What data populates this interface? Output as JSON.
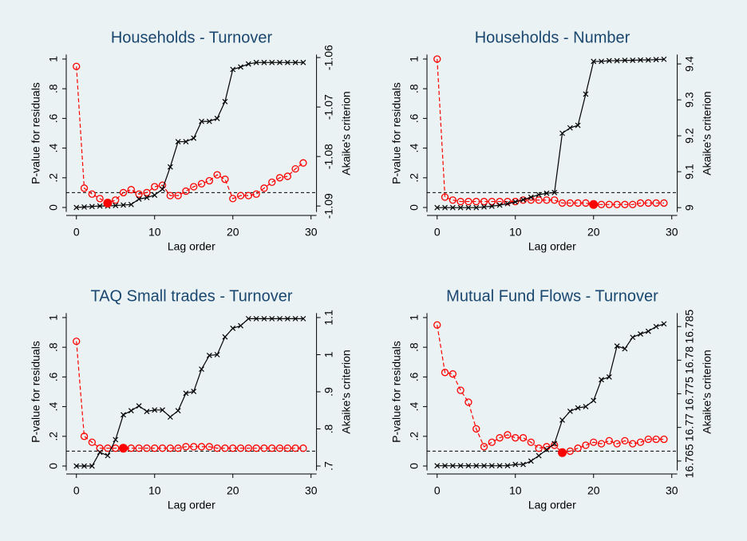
{
  "chart_data": [
    {
      "type": "line",
      "title": "Households - Turnover",
      "xlabel": "Lag order",
      "ylabel": "P-value for residuals",
      "y2label": "Akaike's criterion",
      "x": [
        0,
        1,
        2,
        3,
        4,
        5,
        6,
        7,
        8,
        9,
        10,
        11,
        12,
        13,
        14,
        15,
        16,
        17,
        18,
        19,
        20,
        21,
        22,
        23,
        24,
        25,
        26,
        27,
        28,
        29
      ],
      "xlim": [
        -1.3,
        30.7
      ],
      "xticks": [
        0,
        10,
        20,
        30
      ],
      "ylim": [
        -0.03,
        1.03
      ],
      "yticks": [
        0,
        {
          "value": 0.2,
          "label": ".2"
        },
        {
          "value": 0.4,
          "label": ".4"
        },
        {
          "value": 0.6,
          "label": ".6"
        },
        {
          "value": 0.8,
          "label": ".8"
        },
        1
      ],
      "y2lim": [
        -1.0912,
        -1.0594
      ],
      "y2ticks": [
        -1.09,
        -1.08,
        -1.07,
        -1.06
      ],
      "hline": 0.1,
      "highlight_x": 4,
      "series": [
        {
          "color": "#ff0000",
          "dashed": true,
          "marker": "circle",
          "values": [
            0.95,
            0.13,
            0.09,
            0.06,
            0.03,
            0.05,
            0.1,
            0.12,
            0.09,
            0.1,
            0.14,
            0.15,
            0.08,
            0.08,
            0.11,
            0.14,
            0.16,
            0.18,
            0.22,
            0.19,
            0.06,
            0.08,
            0.08,
            0.09,
            0.13,
            0.17,
            0.2,
            0.21,
            0.26,
            0.3
          ]
        },
        {
          "color": "#000000",
          "dashed": false,
          "marker": "x",
          "axis": "y2",
          "values": [
            -1.0903,
            -1.0902,
            -1.0901,
            -1.09,
            -1.09,
            -1.0899,
            -1.0898,
            -1.0897,
            -1.0886,
            -1.0883,
            -1.0878,
            -1.0866,
            -1.0821,
            -1.077,
            -1.077,
            -1.0763,
            -1.0729,
            -1.0729,
            -1.0723,
            -1.0689,
            -1.0624,
            -1.0619,
            -1.0613,
            -1.061,
            -1.061,
            -1.061,
            -1.061,
            -1.061,
            -1.061,
            -1.061
          ]
        }
      ]
    },
    {
      "type": "line",
      "title": "Households - Number",
      "xlabel": "Lag order",
      "ylabel": "P-value for residuals",
      "y2label": "Akaike's criterion",
      "x": [
        0,
        1,
        2,
        3,
        4,
        5,
        6,
        7,
        8,
        9,
        10,
        11,
        12,
        13,
        14,
        15,
        16,
        17,
        18,
        19,
        20,
        21,
        22,
        23,
        24,
        25,
        26,
        27,
        28,
        29
      ],
      "xlim": [
        -1.3,
        30.7
      ],
      "xticks": [
        0,
        10,
        20,
        30
      ],
      "ylim": [
        -0.03,
        1.03
      ],
      "yticks": [
        0,
        {
          "value": 0.2,
          "label": ".2"
        },
        {
          "value": 0.4,
          "label": ".4"
        },
        {
          "value": 0.6,
          "label": ".6"
        },
        {
          "value": 0.8,
          "label": ".8"
        },
        1
      ],
      "y2lim": [
        8.988,
        9.426
      ],
      "y2ticks": [
        9,
        9.1,
        9.2,
        9.3,
        9.4
      ],
      "hline": 0.1,
      "highlight_x": 20,
      "series": [
        {
          "color": "#ff0000",
          "dashed": true,
          "marker": "circle",
          "values": [
            1.0,
            0.07,
            0.05,
            0.04,
            0.04,
            0.04,
            0.04,
            0.04,
            0.04,
            0.04,
            0.04,
            0.05,
            0.05,
            0.05,
            0.05,
            0.05,
            0.03,
            0.03,
            0.03,
            0.03,
            0.02,
            0.02,
            0.02,
            0.02,
            0.02,
            0.02,
            0.03,
            0.03,
            0.03,
            0.03
          ]
        },
        {
          "color": "#000000",
          "dashed": false,
          "marker": "x",
          "axis": "y2",
          "values": [
            9.0,
            9.0,
            9.0,
            9.0,
            9.0,
            9.0,
            9.002,
            9.004,
            9.007,
            9.011,
            9.016,
            9.022,
            9.029,
            9.036,
            9.04,
            9.042,
            9.207,
            9.222,
            9.229,
            9.316,
            9.407,
            9.407,
            9.409,
            9.409,
            9.41,
            9.41,
            9.411,
            9.411,
            9.412,
            9.413
          ]
        }
      ]
    },
    {
      "type": "line",
      "title": "TAQ Small trades - Turnover",
      "xlabel": "Lag order",
      "ylabel": "P-value for residuals",
      "y2label": "Akaike's criterion",
      "x": [
        0,
        1,
        2,
        3,
        4,
        5,
        6,
        7,
        8,
        9,
        10,
        11,
        12,
        13,
        14,
        15,
        16,
        17,
        18,
        19,
        20,
        21,
        22,
        23,
        24,
        25,
        26,
        27,
        28,
        29
      ],
      "xlim": [
        -1.3,
        30.7
      ],
      "xticks": [
        0,
        10,
        20,
        30
      ],
      "ylim": [
        -0.03,
        1.03
      ],
      "yticks": [
        0,
        {
          "value": 0.2,
          "label": ".2"
        },
        {
          "value": 0.4,
          "label": ".4"
        },
        {
          "value": 0.6,
          "label": ".6"
        },
        {
          "value": 0.8,
          "label": ".8"
        },
        1
      ],
      "y2lim": [
        0.688,
        1.112
      ],
      "y2ticks": [
        {
          "value": 0.7,
          "label": ".7"
        },
        {
          "value": 0.8,
          "label": ".8"
        },
        {
          "value": 0.9,
          "label": ".9"
        },
        1,
        1.1
      ],
      "hline": 0.1,
      "highlight_x": 6,
      "series": [
        {
          "color": "#ff0000",
          "dashed": true,
          "marker": "circle",
          "values": [
            0.84,
            0.2,
            0.16,
            0.12,
            0.12,
            0.12,
            0.12,
            0.12,
            0.12,
            0.12,
            0.12,
            0.12,
            0.12,
            0.12,
            0.13,
            0.13,
            0.13,
            0.13,
            0.12,
            0.12,
            0.12,
            0.12,
            0.12,
            0.12,
            0.12,
            0.12,
            0.12,
            0.12,
            0.12,
            0.12
          ]
        },
        {
          "color": "#000000",
          "dashed": false,
          "marker": "x",
          "axis": "y2",
          "values": [
            0.7,
            0.7,
            0.7,
            0.737,
            0.728,
            0.771,
            0.838,
            0.849,
            0.862,
            0.847,
            0.851,
            0.851,
            0.832,
            0.849,
            0.896,
            0.901,
            0.961,
            0.998,
            1.0,
            1.048,
            1.071,
            1.078,
            1.097,
            1.097,
            1.097,
            1.097,
            1.097,
            1.097,
            1.097,
            1.097
          ]
        }
      ]
    },
    {
      "type": "line",
      "title": "Mutual Fund Flows - Turnover",
      "xlabel": "Lag order",
      "ylabel": "P-value for residuals",
      "y2label": "Akaike's criterion",
      "x": [
        0,
        1,
        2,
        3,
        4,
        5,
        6,
        7,
        8,
        9,
        10,
        11,
        12,
        13,
        14,
        15,
        16,
        17,
        18,
        19,
        20,
        21,
        22,
        23,
        24,
        25,
        26,
        27,
        28,
        29
      ],
      "xlim": [
        -1.3,
        30.7
      ],
      "xticks": [
        0,
        10,
        20,
        30
      ],
      "ylim": [
        -0.03,
        1.03
      ],
      "yticks": [
        0,
        {
          "value": 0.2,
          "label": ".2"
        },
        {
          "value": 0.4,
          "label": ".4"
        },
        {
          "value": 0.6,
          "label": ".6"
        },
        {
          "value": 0.8,
          "label": ".8"
        },
        1
      ],
      "y2lim": [
        16.7636,
        16.787
      ],
      "y2ticks": [
        16.765,
        16.77,
        16.775,
        16.78,
        16.785
      ],
      "hline": 0.1,
      "highlight_x": 16,
      "series": [
        {
          "color": "#ff0000",
          "dashed": true,
          "marker": "circle",
          "values": [
            0.95,
            0.63,
            0.62,
            0.51,
            0.43,
            0.25,
            0.13,
            0.16,
            0.19,
            0.21,
            0.19,
            0.19,
            0.16,
            0.12,
            0.13,
            0.14,
            0.09,
            0.1,
            0.12,
            0.14,
            0.16,
            0.15,
            0.17,
            0.15,
            0.17,
            0.15,
            0.16,
            0.18,
            0.18,
            0.18
          ]
        },
        {
          "color": "#000000",
          "dashed": false,
          "marker": "x",
          "axis": "y2",
          "values": [
            16.7643,
            16.7643,
            16.7643,
            16.7643,
            16.7643,
            16.7643,
            16.7643,
            16.7643,
            16.7643,
            16.7643,
            16.7645,
            16.7645,
            16.765,
            16.7658,
            16.7667,
            16.7676,
            16.7711,
            16.7724,
            16.7729,
            16.7731,
            16.774,
            16.7771,
            16.7775,
            16.7821,
            16.7817,
            16.7834,
            16.7839,
            16.7843,
            16.785,
            16.7854
          ]
        }
      ]
    }
  ]
}
